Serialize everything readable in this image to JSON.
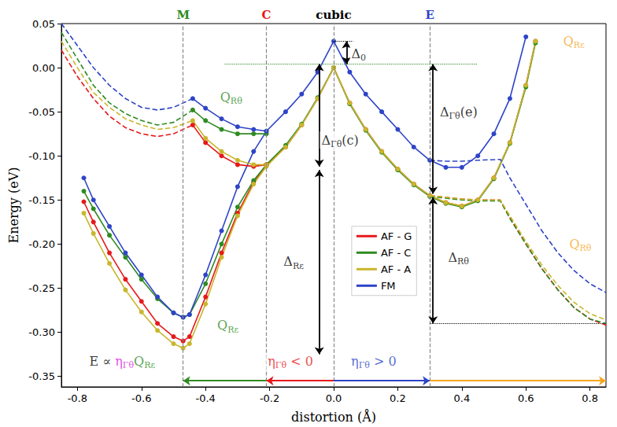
{
  "chart_data": {
    "type": "line",
    "x_label": "distortion (Å)",
    "y_label": "Energy (eV)",
    "xlim": [
      -0.85,
      0.85
    ],
    "ylim": [
      -0.362,
      0.05
    ],
    "xticks": [
      -0.8,
      -0.6,
      -0.4,
      -0.2,
      {
        "value": 0,
        "label": "0.0"
      },
      0.2,
      0.4,
      0.6,
      0.8
    ],
    "yticks": [
      -0.35,
      {
        "value": -0.3,
        "label": "-0.30"
      },
      -0.25,
      {
        "value": -0.2,
        "label": "-0.20"
      },
      -0.15,
      {
        "value": -0.1,
        "label": "-0.10"
      },
      -0.05,
      {
        "value": 0,
        "label": "0.00"
      },
      0.05
    ],
    "grid": false,
    "legend": "center",
    "series": [
      {
        "name": "AF - G",
        "color": "#e6191c",
        "line_style": "solid",
        "marker": "circle",
        "x": [
          -0.78,
          -0.75,
          -0.7,
          -0.65,
          -0.6,
          -0.55,
          -0.5,
          -0.47,
          -0.45,
          -0.4,
          -0.35,
          -0.3,
          -0.25,
          -0.21,
          -0.15,
          -0.1,
          -0.05,
          0,
          0.05,
          0.1,
          0.15,
          0.2,
          0.25,
          0.3,
          0.35,
          0.4,
          0.45,
          0.5,
          0.55,
          0.6,
          0.63
        ],
        "values": [
          -0.152,
          -0.175,
          -0.21,
          -0.24,
          -0.265,
          -0.29,
          -0.305,
          -0.31,
          -0.305,
          -0.26,
          -0.21,
          -0.165,
          -0.13,
          -0.11,
          -0.09,
          -0.065,
          -0.035,
          0,
          -0.04,
          -0.07,
          -0.095,
          -0.115,
          -0.132,
          -0.145,
          -0.153,
          -0.157,
          -0.15,
          -0.125,
          -0.085,
          -0.02,
          0.03
        ]
      },
      {
        "name": "AF - C",
        "color": "#2e8b22",
        "line_style": "solid",
        "marker": "circle",
        "x": [
          -0.78,
          -0.75,
          -0.7,
          -0.65,
          -0.6,
          -0.55,
          -0.5,
          -0.47,
          -0.45,
          -0.4,
          -0.35,
          -0.3,
          -0.25,
          -0.21,
          -0.15,
          -0.1,
          -0.05,
          0,
          0.05,
          0.1,
          0.15,
          0.2,
          0.25,
          0.3,
          0.35,
          0.4,
          0.45,
          0.5,
          0.55,
          0.6,
          0.63
        ],
        "values": [
          -0.14,
          -0.16,
          -0.19,
          -0.215,
          -0.24,
          -0.262,
          -0.278,
          -0.283,
          -0.28,
          -0.245,
          -0.2,
          -0.158,
          -0.128,
          -0.11,
          -0.088,
          -0.064,
          -0.034,
          0,
          -0.041,
          -0.071,
          -0.096,
          -0.116,
          -0.133,
          -0.146,
          -0.154,
          -0.158,
          -0.151,
          -0.126,
          -0.086,
          -0.022,
          0.028
        ]
      },
      {
        "name": "AF - A",
        "color": "#c9b62c",
        "line_style": "solid",
        "marker": "circle",
        "x": [
          -0.78,
          -0.75,
          -0.7,
          -0.65,
          -0.6,
          -0.55,
          -0.5,
          -0.47,
          -0.45,
          -0.4,
          -0.35,
          -0.3,
          -0.25,
          -0.21,
          -0.15,
          -0.1,
          -0.05,
          0,
          0.05,
          0.1,
          0.15,
          0.2,
          0.25,
          0.3,
          0.35,
          0.4,
          0.45,
          0.5,
          0.55,
          0.6,
          0.63
        ],
        "values": [
          -0.165,
          -0.188,
          -0.222,
          -0.252,
          -0.277,
          -0.298,
          -0.313,
          -0.318,
          -0.313,
          -0.268,
          -0.215,
          -0.168,
          -0.132,
          -0.112,
          -0.09,
          -0.065,
          -0.035,
          0,
          -0.04,
          -0.07,
          -0.095,
          -0.115,
          -0.132,
          -0.145,
          -0.153,
          -0.157,
          -0.15,
          -0.125,
          -0.085,
          -0.02,
          0.03
        ]
      },
      {
        "name": "FM",
        "color": "#2e44c8",
        "line_style": "solid",
        "marker": "circle",
        "x": [
          -0.78,
          -0.75,
          -0.7,
          -0.65,
          -0.6,
          -0.55,
          -0.5,
          -0.47,
          -0.45,
          -0.4,
          -0.35,
          -0.3,
          -0.25,
          -0.21,
          -0.15,
          -0.1,
          -0.05,
          0,
          0.05,
          0.1,
          0.15,
          0.2,
          0.25,
          0.3,
          0.35,
          0.4,
          0.45,
          0.5,
          0.55,
          0.6,
          0.63
        ],
        "values": [
          -0.125,
          -0.15,
          -0.18,
          -0.21,
          -0.235,
          -0.26,
          -0.278,
          -0.283,
          -0.28,
          -0.235,
          -0.185,
          -0.135,
          -0.095,
          -0.072,
          -0.05,
          -0.03,
          -0.005,
          0.03,
          -0.005,
          -0.03,
          -0.05,
          -0.07,
          -0.09,
          -0.105,
          -0.113,
          -0.113,
          -0.1,
          -0.075,
          -0.035,
          0.035,
          null
        ]
      },
      {
        "name": "AF - G",
        "color": "#e6191c",
        "line_style": "solid",
        "marker": "circle",
        "x": [
          -0.21,
          -0.25,
          -0.3,
          -0.35,
          -0.4,
          -0.44
        ],
        "values": [
          -0.11,
          -0.112,
          -0.11,
          -0.1,
          -0.085,
          -0.065
        ]
      },
      {
        "name": "AF - C",
        "color": "#2e8b22",
        "line_style": "solid",
        "marker": "circle",
        "x": [
          -0.21,
          -0.25,
          -0.3,
          -0.35,
          -0.4,
          -0.44
        ],
        "values": [
          -0.075,
          -0.075,
          -0.075,
          -0.07,
          -0.06,
          -0.048
        ]
      },
      {
        "name": "AF - A",
        "color": "#c9b62c",
        "line_style": "solid",
        "marker": "circle",
        "x": [
          -0.21,
          -0.25,
          -0.3,
          -0.35,
          -0.4,
          -0.44
        ],
        "values": [
          -0.11,
          -0.11,
          -0.105,
          -0.095,
          -0.08,
          -0.06
        ]
      },
      {
        "name": "FM",
        "color": "#2e44c8",
        "line_style": "solid",
        "marker": "circle",
        "x": [
          -0.21,
          -0.25,
          -0.3,
          -0.35,
          -0.4,
          -0.44
        ],
        "values": [
          -0.072,
          -0.07,
          -0.067,
          -0.058,
          -0.046,
          -0.035
        ]
      },
      {
        "name": "AF - G",
        "color": "#e6191c",
        "line_style": "dashed",
        "marker": "none",
        "x": [
          -0.85,
          -0.8,
          -0.75,
          -0.7,
          -0.65,
          -0.6,
          -0.55,
          -0.5,
          -0.44,
          0,
          0.3,
          0.35,
          0.4,
          0.45,
          0.52,
          0.55,
          0.6,
          0.65,
          0.7,
          0.75,
          0.8,
          0.85
        ],
        "values": [
          0.02,
          -0.01,
          -0.035,
          -0.055,
          -0.068,
          -0.075,
          -0.078,
          -0.075,
          -0.065,
          null,
          -0.145,
          -0.147,
          -0.149,
          -0.15,
          -0.15,
          -0.17,
          -0.2,
          -0.228,
          -0.252,
          -0.272,
          -0.285,
          -0.292
        ]
      },
      {
        "name": "AF - C",
        "color": "#2e8b22",
        "line_style": "dashed",
        "marker": "none",
        "x": [
          -0.85,
          -0.8,
          -0.75,
          -0.7,
          -0.65,
          -0.6,
          -0.55,
          -0.5,
          -0.44,
          0,
          0.3,
          0.35,
          0.4,
          0.45,
          0.52,
          0.55,
          0.6,
          0.65,
          0.7,
          0.75,
          0.8,
          0.85
        ],
        "values": [
          0.04,
          0.01,
          -0.02,
          -0.04,
          -0.052,
          -0.06,
          -0.065,
          -0.062,
          -0.048,
          null,
          -0.146,
          -0.148,
          -0.15,
          -0.151,
          -0.151,
          -0.171,
          -0.2,
          -0.228,
          -0.252,
          -0.272,
          -0.285,
          -0.29
        ]
      },
      {
        "name": "AF - A",
        "color": "#c9b62c",
        "line_style": "dashed",
        "marker": "none",
        "x": [
          -0.85,
          -0.8,
          -0.75,
          -0.7,
          -0.65,
          -0.6,
          -0.55,
          -0.5,
          -0.44,
          0,
          0.3,
          0.35,
          0.4,
          0.45,
          0.52,
          0.55,
          0.6,
          0.65,
          0.7,
          0.75,
          0.8,
          0.85
        ],
        "values": [
          0.03,
          0,
          -0.028,
          -0.045,
          -0.058,
          -0.065,
          -0.07,
          -0.068,
          -0.06,
          null,
          -0.145,
          -0.147,
          -0.149,
          -0.15,
          -0.15,
          -0.168,
          -0.197,
          -0.224,
          -0.247,
          -0.266,
          -0.279,
          -0.286
        ]
      },
      {
        "name": "FM",
        "color": "#2e44c8",
        "line_style": "dashed",
        "marker": "none",
        "x": [
          -0.85,
          -0.8,
          -0.75,
          -0.7,
          -0.65,
          -0.6,
          -0.55,
          -0.5,
          -0.44,
          0,
          0.3,
          0.35,
          0.4,
          0.45,
          0.52,
          0.55,
          0.6,
          0.65,
          0.7,
          0.75,
          0.8,
          0.85
        ],
        "values": [
          0.05,
          0.025,
          0,
          -0.02,
          -0.035,
          -0.045,
          -0.048,
          -0.045,
          -0.035,
          null,
          -0.105,
          -0.106,
          -0.106,
          -0.105,
          -0.104,
          -0.125,
          -0.155,
          -0.185,
          -0.21,
          -0.23,
          -0.245,
          -0.255
        ]
      }
    ],
    "vlines": [
      {
        "x": -0.47,
        "label": "M",
        "color": "#2e8b22"
      },
      {
        "x": -0.21,
        "label": "C",
        "color": "#e6191c"
      },
      {
        "x": 0,
        "label": "cubic",
        "color": "#000000"
      },
      {
        "x": 0.3,
        "label": "E",
        "color": "#2e44c8"
      }
    ],
    "reference_lines": [
      {
        "from": [
          0,
          0.03
        ],
        "to": [
          0.06,
          0.03
        ],
        "color": "#000000",
        "line_style": "dotted"
      },
      {
        "from": [
          -0.34,
          0.004
        ],
        "to": [
          0.45,
          0.004
        ],
        "color": "#2e8b22",
        "line_style": "dotted"
      },
      {
        "from": [
          0.3,
          -0.29
        ],
        "to": [
          0.85,
          -0.29
        ],
        "color": "#000000",
        "line_style": "dotted"
      }
    ],
    "arrows": [
      {
        "from": [
          0.04,
          0.03
        ],
        "to": [
          0.04,
          0.004
        ],
        "color": "#000000",
        "marker": "double"
      },
      {
        "from": [
          -0.045,
          0.004
        ],
        "to": [
          -0.045,
          -0.112
        ],
        "color": "#000000",
        "marker": "double"
      },
      {
        "from": [
          -0.045,
          -0.116
        ],
        "to": [
          -0.045,
          -0.325
        ],
        "color": "#000000",
        "marker": "double"
      },
      {
        "from": [
          0.31,
          0.004
        ],
        "to": [
          0.31,
          -0.143
        ],
        "color": "#000000",
        "marker": "double"
      },
      {
        "from": [
          0.31,
          -0.147
        ],
        "to": [
          0.31,
          -0.29
        ],
        "color": "#000000",
        "marker": "double"
      },
      {
        "from": [
          -0.21,
          -0.355
        ],
        "to": [
          -0.47,
          -0.355
        ],
        "color": "#2e8b22",
        "marker": "single"
      },
      {
        "from": [
          0,
          -0.355
        ],
        "to": [
          -0.21,
          -0.355
        ],
        "color": "#e6191c",
        "marker": "single"
      },
      {
        "from": [
          0,
          -0.355
        ],
        "to": [
          0.3,
          -0.355
        ],
        "color": "#2e44c8",
        "marker": "single"
      },
      {
        "from": [
          0.3,
          -0.355
        ],
        "to": [
          0.85,
          -0.355
        ],
        "color": "#f5a623",
        "marker": "single"
      }
    ],
    "annotations": [
      {
        "x": -0.32,
        "y": -0.033,
        "parts": [
          {
            "text": "Q",
            "color": "#2e8b22"
          },
          {
            "text": "Rθ",
            "color": "#2e8b22",
            "sub": true
          }
        ]
      },
      {
        "x": -0.33,
        "y": -0.292,
        "parts": [
          {
            "text": "Q",
            "color": "#2e8b22"
          },
          {
            "text": "Rε",
            "color": "#2e8b22",
            "sub": true
          }
        ]
      },
      {
        "x": 0.75,
        "y": 0.03,
        "parts": [
          {
            "text": "Q",
            "color": "#f5a623"
          },
          {
            "text": "Rε",
            "color": "#f5a623",
            "sub": true
          }
        ]
      },
      {
        "x": 0.77,
        "y": -0.2,
        "parts": [
          {
            "text": "Q",
            "color": "#f5a623"
          },
          {
            "text": "Rθ",
            "color": "#f5a623",
            "sub": true
          }
        ]
      },
      {
        "x": 0.078,
        "y": 0.016,
        "parts": [
          {
            "text": "Δ",
            "color": "#000000"
          },
          {
            "text": "0",
            "color": "#000000",
            "sub": true
          }
        ]
      },
      {
        "x": 0.02,
        "y": -0.082,
        "parts": [
          {
            "text": "Δ",
            "color": "#000000"
          },
          {
            "text": "Γθ",
            "color": "#000000",
            "sub": true
          },
          {
            "text": "(c)",
            "color": "#000000"
          }
        ]
      },
      {
        "x": 0.39,
        "y": -0.05,
        "parts": [
          {
            "text": "Δ",
            "color": "#000000"
          },
          {
            "text": "Γθ",
            "color": "#000000",
            "sub": true
          },
          {
            "text": "(e)",
            "color": "#000000"
          }
        ]
      },
      {
        "x": -0.125,
        "y": -0.22,
        "parts": [
          {
            "text": "Δ",
            "color": "#000000"
          },
          {
            "text": "Rε",
            "color": "#000000",
            "sub": true
          }
        ]
      },
      {
        "x": 0.39,
        "y": -0.215,
        "parts": [
          {
            "text": "Δ",
            "color": "#000000"
          },
          {
            "text": "Rθ",
            "color": "#000000",
            "sub": true
          }
        ]
      },
      {
        "x": -0.66,
        "y": -0.333,
        "parts": [
          {
            "text": "E ∝ ",
            "color": "#000000"
          },
          {
            "text": "η",
            "color": "#e020e0"
          },
          {
            "text": "Γθ",
            "color": "#e020e0",
            "sub": true
          },
          {
            "text": "Q",
            "color": "#2e8b22"
          },
          {
            "text": "Rε",
            "color": "#2e8b22",
            "sub": true
          }
        ]
      },
      {
        "x": -0.135,
        "y": -0.333,
        "parts": [
          {
            "text": "η",
            "color": "#e6191c"
          },
          {
            "text": "Γθ",
            "color": "#e6191c",
            "sub": true
          },
          {
            "text": " < 0",
            "color": "#e6191c"
          }
        ]
      },
      {
        "x": 0.125,
        "y": -0.333,
        "parts": [
          {
            "text": "η",
            "color": "#2e44c8"
          },
          {
            "text": "Γθ",
            "color": "#2e44c8",
            "sub": true
          },
          {
            "text": " > 0",
            "color": "#2e44c8"
          }
        ]
      }
    ]
  }
}
